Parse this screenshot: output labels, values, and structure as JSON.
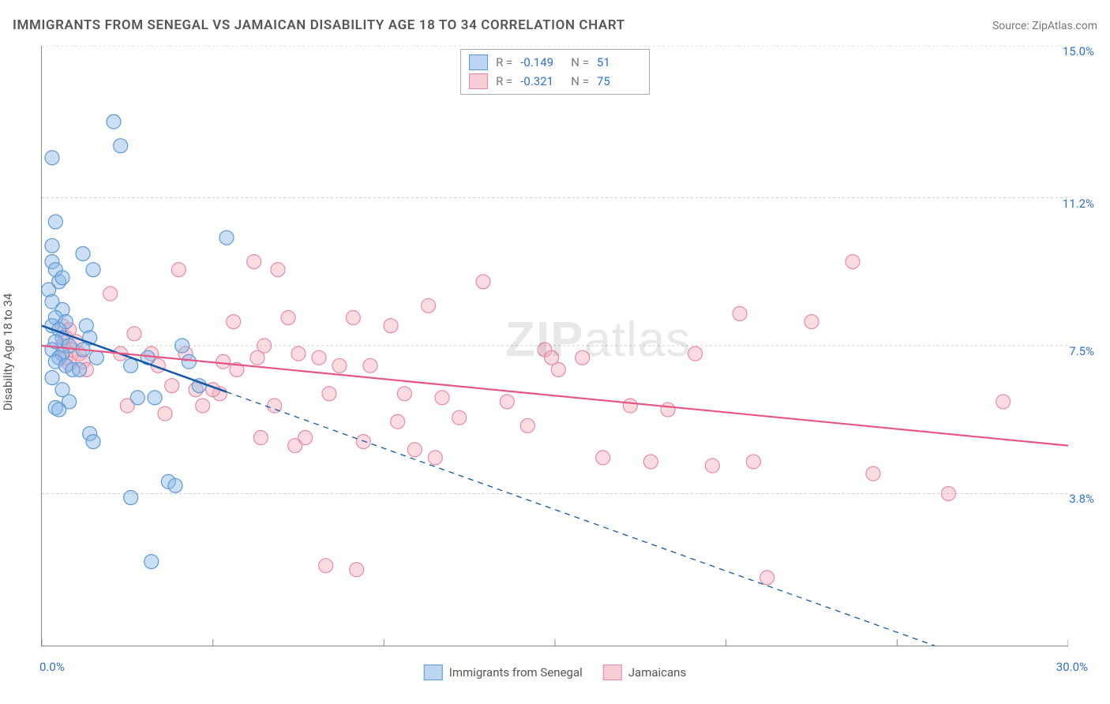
{
  "header": {
    "title": "IMMIGRANTS FROM SENEGAL VS JAMAICAN DISABILITY AGE 18 TO 34 CORRELATION CHART",
    "source_label": "Source: ",
    "source_link": "ZipAtlas.com"
  },
  "watermark": {
    "zip": "ZIP",
    "atlas": "atlas"
  },
  "chart": {
    "type": "scatter",
    "ylabel": "Disability Age 18 to 34",
    "x": {
      "min": 0.0,
      "max": 30.0,
      "ticks": [
        0,
        5,
        10,
        15,
        20,
        25,
        30
      ],
      "label_min": "0.0%",
      "label_max": "30.0%"
    },
    "y": {
      "min": 0.0,
      "max": 15.0,
      "grid": [
        3.8,
        7.5,
        11.2,
        15.0
      ],
      "labels": [
        "3.8%",
        "7.5%",
        "11.2%",
        "15.0%"
      ]
    },
    "background": "#ffffff",
    "grid_color": "#cccccc",
    "axis_color": "#888888",
    "axis_num_color": "#2f6fd0",
    "point_radius": 9,
    "series": [
      {
        "name": "Immigrants from Senegal",
        "key": "senegal",
        "fill": "#8ab7e6",
        "stroke": "#5d99d6",
        "trend": {
          "color": "#1258a8",
          "width": 2.5,
          "solid_to_x": 5.4,
          "y_at_0": 8.0,
          "y_at_30": -1.2
        },
        "R": "-0.149",
        "N": "51",
        "points": [
          [
            0.3,
            12.2
          ],
          [
            0.4,
            10.6
          ],
          [
            0.3,
            9.6
          ],
          [
            0.4,
            9.4
          ],
          [
            0.5,
            9.1
          ],
          [
            0.2,
            8.9
          ],
          [
            0.3,
            8.6
          ],
          [
            0.6,
            8.4
          ],
          [
            0.4,
            8.2
          ],
          [
            0.7,
            8.1
          ],
          [
            0.3,
            8.0
          ],
          [
            0.5,
            7.9
          ],
          [
            0.6,
            7.7
          ],
          [
            0.4,
            7.6
          ],
          [
            0.8,
            7.5
          ],
          [
            0.3,
            7.4
          ],
          [
            0.6,
            7.3
          ],
          [
            0.5,
            7.2
          ],
          [
            0.4,
            7.1
          ],
          [
            0.7,
            7.0
          ],
          [
            0.9,
            6.9
          ],
          [
            0.3,
            6.7
          ],
          [
            0.6,
            6.4
          ],
          [
            0.8,
            6.1
          ],
          [
            0.4,
            5.95
          ],
          [
            1.2,
            9.8
          ],
          [
            1.5,
            9.4
          ],
          [
            1.3,
            8.0
          ],
          [
            1.4,
            7.7
          ],
          [
            1.2,
            7.4
          ],
          [
            1.6,
            7.2
          ],
          [
            1.1,
            6.9
          ],
          [
            1.4,
            5.3
          ],
          [
            1.5,
            5.1
          ],
          [
            0.5,
            5.9
          ],
          [
            2.1,
            13.1
          ],
          [
            2.3,
            12.5
          ],
          [
            2.6,
            7.0
          ],
          [
            2.8,
            6.2
          ],
          [
            2.6,
            3.7
          ],
          [
            3.1,
            7.2
          ],
          [
            3.3,
            6.2
          ],
          [
            3.2,
            2.1
          ],
          [
            3.7,
            4.1
          ],
          [
            3.9,
            4.0
          ],
          [
            5.4,
            10.2
          ],
          [
            4.1,
            7.5
          ],
          [
            4.3,
            7.1
          ],
          [
            4.6,
            6.5
          ],
          [
            0.6,
            9.2
          ],
          [
            0.3,
            10.0
          ]
        ]
      },
      {
        "name": "Jamaicans",
        "key": "jamaicans",
        "fill": "#f4a9bb",
        "stroke": "#e88ba4",
        "trend": {
          "color": "#e75480",
          "width": 2.2,
          "y_at_0": 7.5,
          "y_at_30": 5.0
        },
        "R": "-0.321",
        "N": "75",
        "points": [
          [
            0.6,
            8.0
          ],
          [
            0.8,
            7.9
          ],
          [
            0.7,
            7.7
          ],
          [
            1.0,
            7.6
          ],
          [
            0.6,
            7.5
          ],
          [
            0.9,
            7.4
          ],
          [
            1.1,
            7.3
          ],
          [
            0.7,
            7.2
          ],
          [
            1.2,
            7.1
          ],
          [
            0.8,
            7.05
          ],
          [
            1.3,
            6.9
          ],
          [
            2.0,
            8.8
          ],
          [
            2.3,
            7.3
          ],
          [
            2.5,
            6.0
          ],
          [
            3.2,
            7.3
          ],
          [
            3.4,
            7.0
          ],
          [
            3.6,
            5.8
          ],
          [
            4.0,
            9.4
          ],
          [
            4.2,
            7.3
          ],
          [
            4.5,
            6.4
          ],
          [
            4.7,
            6.0
          ],
          [
            5.6,
            8.1
          ],
          [
            5.3,
            7.1
          ],
          [
            5.7,
            6.9
          ],
          [
            5.2,
            6.3
          ],
          [
            6.2,
            9.6
          ],
          [
            6.5,
            7.5
          ],
          [
            6.3,
            7.2
          ],
          [
            6.8,
            6.0
          ],
          [
            6.4,
            5.2
          ],
          [
            7.2,
            8.2
          ],
          [
            7.5,
            7.3
          ],
          [
            7.4,
            5.0
          ],
          [
            7.7,
            5.2
          ],
          [
            8.1,
            7.2
          ],
          [
            8.4,
            6.3
          ],
          [
            8.3,
            2.0
          ],
          [
            9.2,
            1.9
          ],
          [
            9.1,
            8.2
          ],
          [
            9.6,
            7.0
          ],
          [
            9.4,
            5.1
          ],
          [
            10.2,
            8.0
          ],
          [
            10.6,
            6.3
          ],
          [
            10.4,
            5.6
          ],
          [
            10.9,
            4.9
          ],
          [
            11.3,
            8.5
          ],
          [
            11.7,
            6.2
          ],
          [
            11.5,
            4.7
          ],
          [
            12.9,
            9.1
          ],
          [
            12.2,
            5.7
          ],
          [
            13.6,
            6.1
          ],
          [
            14.7,
            7.4
          ],
          [
            14.2,
            5.5
          ],
          [
            15.1,
            6.9
          ],
          [
            15.8,
            7.2
          ],
          [
            16.4,
            4.7
          ],
          [
            17.2,
            6.0
          ],
          [
            17.8,
            4.6
          ],
          [
            18.3,
            5.9
          ],
          [
            19.1,
            7.3
          ],
          [
            19.6,
            4.5
          ],
          [
            20.4,
            8.3
          ],
          [
            20.8,
            4.6
          ],
          [
            21.2,
            1.7
          ],
          [
            22.5,
            8.1
          ],
          [
            23.7,
            9.6
          ],
          [
            24.3,
            4.3
          ],
          [
            26.5,
            3.8
          ],
          [
            28.1,
            6.1
          ],
          [
            14.9,
            7.2
          ],
          [
            6.9,
            9.4
          ],
          [
            8.7,
            7.0
          ],
          [
            5.0,
            6.4
          ],
          [
            3.8,
            6.5
          ],
          [
            2.7,
            7.8
          ]
        ]
      }
    ],
    "legend_bottom": [
      {
        "key": "senegal",
        "label": "Immigrants from Senegal"
      },
      {
        "key": "jamaicans",
        "label": "Jamaicans"
      }
    ]
  }
}
